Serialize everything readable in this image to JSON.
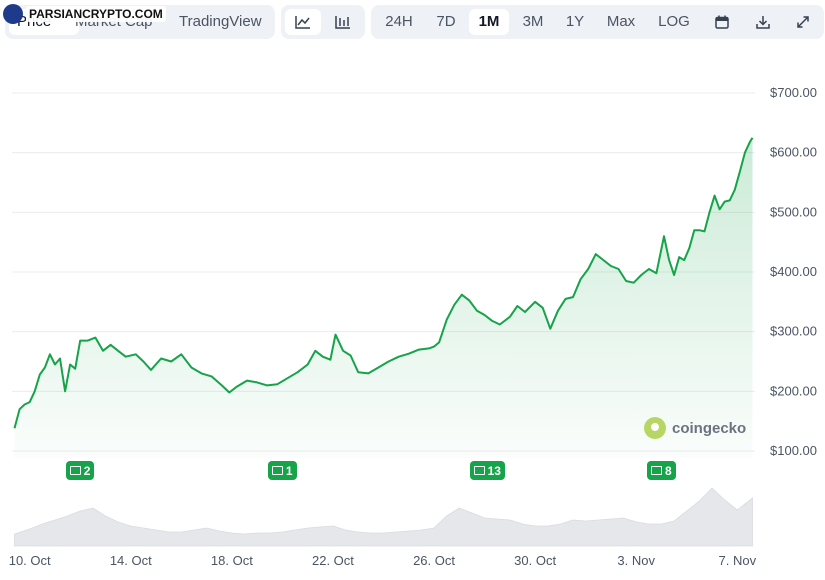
{
  "watermark": {
    "text": "PARSIANCRYPTO.COM"
  },
  "tabs": {
    "price": "Price",
    "market_cap": "Market Cap",
    "tradingview": "TradingView"
  },
  "chart_type_buttons": [
    "line-chart-icon",
    "candlestick-chart-icon"
  ],
  "ranges": [
    "24H",
    "7D",
    "1M",
    "3M",
    "1Y",
    "Max",
    "LOG"
  ],
  "active_range": "1M",
  "tool_icons": [
    "calendar-icon",
    "download-icon",
    "expand-icon"
  ],
  "brand": {
    "text": "coingecko"
  },
  "colors": {
    "line": "#16a34a",
    "fill": "#16a34a",
    "badge": "#16a34a",
    "volume": "#e5e7eb"
  },
  "badges": [
    {
      "label": "2",
      "date": "12 Oct"
    },
    {
      "label": "1",
      "date": "20 Oct"
    },
    {
      "label": "13",
      "date": "28 Oct"
    },
    {
      "label": "8",
      "date": "4 Nov"
    }
  ],
  "chart_data": {
    "type": "area",
    "title": "",
    "xlabel": "",
    "ylabel": "",
    "xlim": [
      9.3,
      38.7
    ],
    "ylim": [
      100,
      700
    ],
    "y_ticks": [
      "$100.00",
      "$200.00",
      "$300.00",
      "$400.00",
      "$500.00",
      "$600.00",
      "$700.00"
    ],
    "x_ticks": [
      {
        "label": "10. Oct",
        "day": 10
      },
      {
        "label": "14. Oct",
        "day": 14
      },
      {
        "label": "18. Oct",
        "day": 18
      },
      {
        "label": "22. Oct",
        "day": 22
      },
      {
        "label": "26. Oct",
        "day": 26
      },
      {
        "label": "30. Oct",
        "day": 30
      },
      {
        "label": "3. Nov",
        "day": 34
      },
      {
        "label": "7. Nov",
        "day": 38
      }
    ],
    "series": [
      {
        "x": [
          9.4,
          9.6,
          9.8,
          10.0,
          10.2,
          10.4,
          10.6,
          10.8,
          11.0,
          11.2,
          11.4,
          11.6,
          11.8,
          12.0,
          12.3,
          12.6,
          12.9,
          13.2,
          13.5,
          13.8,
          14.2,
          14.5,
          14.8,
          15.2,
          15.6,
          16.0,
          16.4,
          16.8,
          17.2,
          17.6,
          17.9,
          18.2,
          18.6,
          19.0,
          19.4,
          19.8,
          20.2,
          20.6,
          21.0,
          21.3,
          21.6,
          21.9,
          22.1,
          22.4,
          22.7,
          23.0,
          23.4,
          23.8,
          24.2,
          24.6,
          25.0,
          25.4,
          25.8,
          26.0,
          26.2,
          26.5,
          26.8,
          27.1,
          27.4,
          27.7,
          28.0,
          28.3,
          28.6,
          29.0,
          29.3,
          29.6,
          30.0,
          30.3,
          30.6,
          30.9,
          31.2,
          31.5,
          31.8,
          32.1,
          32.4,
          32.7,
          33.0,
          33.3,
          33.6,
          33.9,
          34.2,
          34.5,
          34.8,
          35.1,
          35.3,
          35.5,
          35.7,
          35.9,
          36.1,
          36.3,
          36.5,
          36.7,
          36.9,
          37.1,
          37.3,
          37.5,
          37.7,
          37.9,
          38.1,
          38.3,
          38.5,
          38.6
        ],
        "y": [
          138,
          170,
          178,
          182,
          200,
          228,
          240,
          262,
          245,
          255,
          200,
          245,
          238,
          285,
          285,
          290,
          268,
          278,
          268,
          258,
          262,
          250,
          236,
          255,
          250,
          262,
          240,
          230,
          225,
          210,
          198,
          208,
          218,
          215,
          210,
          212,
          222,
          232,
          245,
          268,
          258,
          253,
          295,
          268,
          260,
          232,
          230,
          240,
          250,
          258,
          263,
          270,
          272,
          275,
          282,
          320,
          345,
          362,
          352,
          335,
          328,
          318,
          312,
          325,
          343,
          333,
          350,
          340,
          305,
          335,
          355,
          358,
          388,
          405,
          430,
          420,
          410,
          405,
          385,
          382,
          395,
          405,
          398,
          460,
          420,
          395,
          425,
          420,
          440,
          470,
          470,
          468,
          500,
          528,
          505,
          518,
          520,
          538,
          568,
          600,
          618,
          625
        ]
      }
    ],
    "volume": {
      "x": [
        9.4,
        10.0,
        10.5,
        11.0,
        11.5,
        12.0,
        12.5,
        13.0,
        13.5,
        14.0,
        14.5,
        15.0,
        15.5,
        16.0,
        16.5,
        17.0,
        17.5,
        18.0,
        18.5,
        19.0,
        19.5,
        20.0,
        20.5,
        21.0,
        21.5,
        22.0,
        22.5,
        23.0,
        23.5,
        24.0,
        24.5,
        25.0,
        25.5,
        26.0,
        26.5,
        27.0,
        27.5,
        28.0,
        28.5,
        29.0,
        29.5,
        30.0,
        30.5,
        31.0,
        31.5,
        32.0,
        32.5,
        33.0,
        33.5,
        34.0,
        34.5,
        35.0,
        35.5,
        36.0,
        36.5,
        37.0,
        37.5,
        38.0,
        38.6
      ],
      "y": [
        12,
        17,
        22,
        26,
        30,
        35,
        38,
        30,
        24,
        20,
        18,
        16,
        14,
        14,
        16,
        18,
        15,
        13,
        12,
        13,
        13,
        14,
        16,
        18,
        19,
        20,
        16,
        14,
        13,
        13,
        14,
        15,
        16,
        18,
        30,
        38,
        33,
        28,
        27,
        26,
        22,
        20,
        20,
        22,
        26,
        25,
        26,
        27,
        28,
        24,
        22,
        22,
        25,
        35,
        45,
        58,
        46,
        36,
        48
      ]
    }
  }
}
